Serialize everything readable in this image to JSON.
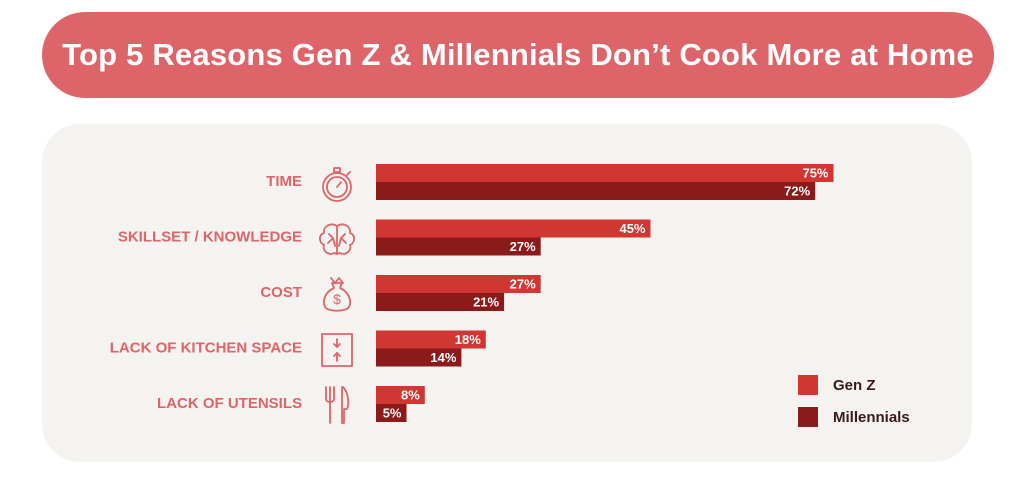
{
  "title": "Top 5 Reasons Gen Z & Millennials Don’t Cook More at Home",
  "colors": {
    "title_bg": "#dd6468",
    "panel_bg": "#f5f3f0",
    "gen_z": "#d03632",
    "millennials": "#8b1a1a",
    "label": "#dd6468"
  },
  "chart_data": {
    "type": "bar",
    "orientation": "horizontal",
    "categories": [
      "TIME",
      "SKILLSET / KNOWLEDGE",
      "COST",
      "LACK OF KITCHEN SPACE",
      "LACK OF UTENSILS"
    ],
    "category_icons": [
      "stopwatch-icon",
      "brain-icon",
      "money-bag-icon",
      "space-arrows-icon",
      "utensils-icon"
    ],
    "series": [
      {
        "name": "Gen Z",
        "values": [
          75,
          45,
          27,
          18,
          8
        ],
        "labels": [
          "75%",
          "45%",
          "27%",
          "18%",
          "8%"
        ],
        "color": "#d03632"
      },
      {
        "name": "Millennials",
        "values": [
          72,
          27,
          21,
          14,
          5
        ],
        "labels": [
          "72%",
          "27%",
          "21%",
          "14%",
          "5%"
        ],
        "color": "#8b1a1a"
      }
    ],
    "xlim": [
      0,
      100
    ],
    "grid": false,
    "legend_position": "bottom-right"
  }
}
